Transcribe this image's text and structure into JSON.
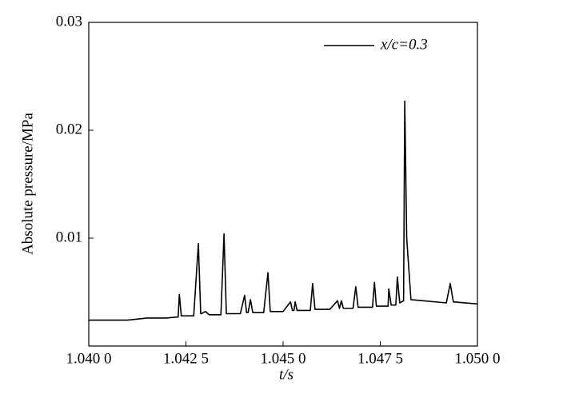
{
  "chart_data": {
    "type": "line",
    "x_label": "t/s",
    "y_label": "Absolute pressure/MPa",
    "xlim": [
      1.04,
      1.05
    ],
    "ylim": [
      0,
      0.03
    ],
    "xticks": [
      {
        "value": 1.04,
        "label": "1.040 0"
      },
      {
        "value": 1.0425,
        "label": "1.042 5"
      },
      {
        "value": 1.045,
        "label": "1.045 0"
      },
      {
        "value": 1.0475,
        "label": "1.047 5"
      },
      {
        "value": 1.05,
        "label": "1.050 0"
      }
    ],
    "yticks": [
      0.01,
      0.02,
      0.03
    ],
    "grid": false,
    "legend": "upper right",
    "x": [
      1.04,
      1.041,
      1.0415,
      1.042,
      1.0423,
      1.04233,
      1.04238,
      1.0427,
      1.04282,
      1.04288,
      1.0429,
      1.043,
      1.0431,
      1.0434,
      1.04348,
      1.04354,
      1.0436,
      1.0439,
      1.04401,
      1.04406,
      1.0441,
      1.04416,
      1.04422,
      1.0445,
      1.04461,
      1.04467,
      1.045,
      1.04519,
      1.04524,
      1.04528,
      1.04531,
      1.04536,
      1.0457,
      1.04576,
      1.04582,
      1.0462,
      1.0464,
      1.04645,
      1.0465,
      1.04655,
      1.0468,
      1.04687,
      1.04693,
      1.0473,
      1.04735,
      1.0474,
      1.0477,
      1.04772,
      1.04778,
      1.0479,
      1.04794,
      1.048,
      1.0481,
      1.04813,
      1.04818,
      1.04829,
      1.0486,
      1.0492,
      1.0493,
      1.04938,
      1.05
    ],
    "series": [
      {
        "name": "x/c=0.3",
        "color": "#000000",
        "values": [
          0.0024,
          0.0024,
          0.0026,
          0.0026,
          0.0027,
          0.0048,
          0.0028,
          0.0028,
          0.0095,
          0.003,
          0.003,
          0.0032,
          0.0029,
          0.0029,
          0.0104,
          0.003,
          0.003,
          0.003,
          0.0047,
          0.0031,
          0.0031,
          0.0043,
          0.0031,
          0.0031,
          0.0068,
          0.0032,
          0.0032,
          0.0041,
          0.0033,
          0.0033,
          0.0041,
          0.0033,
          0.0033,
          0.0058,
          0.0034,
          0.0034,
          0.0042,
          0.0035,
          0.0042,
          0.0035,
          0.0035,
          0.0055,
          0.0036,
          0.0036,
          0.0059,
          0.0037,
          0.0037,
          0.0053,
          0.0038,
          0.0038,
          0.0064,
          0.004,
          0.0042,
          0.0227,
          0.01,
          0.0043,
          0.0042,
          0.004,
          0.0058,
          0.0041,
          0.0039
        ]
      }
    ]
  }
}
